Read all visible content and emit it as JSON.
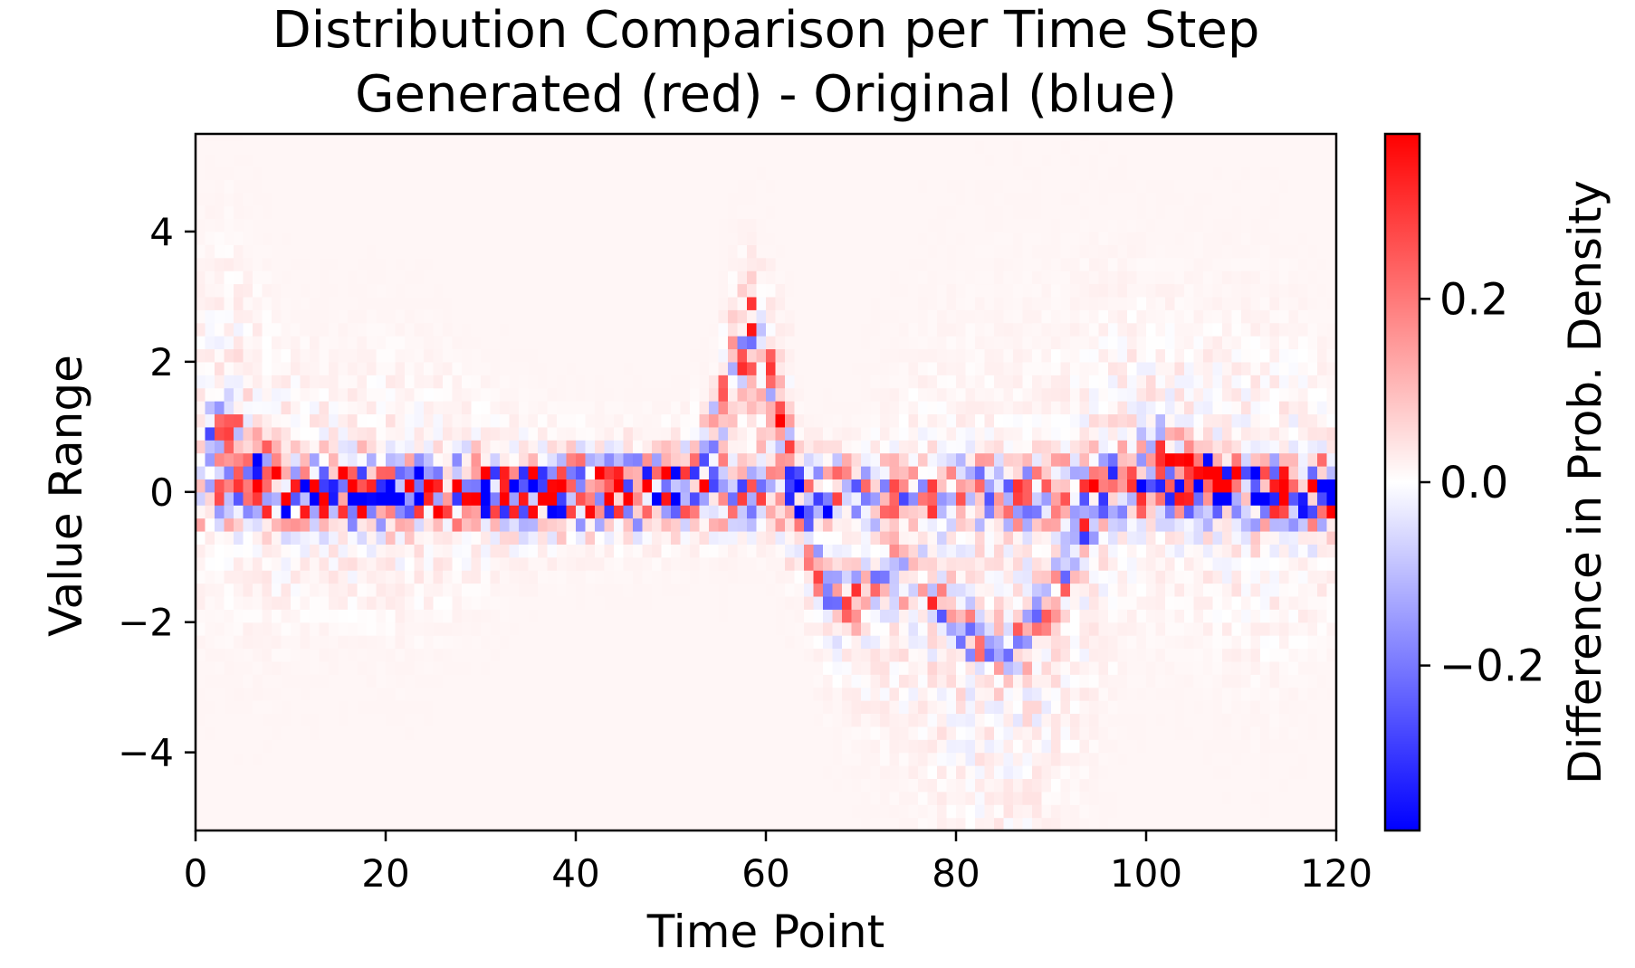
{
  "chart_data": {
    "type": "heatmap",
    "title": "Distribution Comparison per Time Step",
    "subtitle": "Generated (red) - Original (blue)",
    "xlabel": "Time Point",
    "ylabel": "Value Range",
    "xlim": [
      0,
      120
    ],
    "ylim": [
      -5.2,
      5.5
    ],
    "x_ticks": [
      0,
      20,
      40,
      60,
      80,
      100,
      120
    ],
    "x_tick_labels": [
      "0",
      "20",
      "40",
      "60",
      "80",
      "100",
      "120"
    ],
    "y_ticks": [
      -4,
      -2,
      0,
      2,
      4
    ],
    "y_tick_labels": [
      "−4",
      "−2",
      "0",
      "2",
      "4"
    ],
    "colorbar": {
      "label": "Difference in Prob. Density",
      "range": [
        -0.38,
        0.38
      ],
      "ticks": [
        -0.2,
        0.0,
        0.2
      ],
      "tick_labels": [
        "−0.2",
        "0.0",
        "0.2"
      ],
      "colormap": "bwr",
      "color_low": "#0000ff",
      "color_mid": "#ffffff",
      "color_high": "#ff0000"
    },
    "grid": false,
    "legend": "none",
    "cell_width": 1,
    "cell_height": 0.2,
    "highlights": [
      {
        "x": 2,
        "y": 0.1,
        "value": 0.25
      },
      {
        "x": 4,
        "y": -0.1,
        "value": -0.25
      },
      {
        "x": 25,
        "y": 0.1,
        "value": 0.33
      },
      {
        "x": 34,
        "y": 0.1,
        "value": -0.25
      },
      {
        "x": 58,
        "y": 2.9,
        "value": 0.3
      },
      {
        "x": 60,
        "y": 1.9,
        "value": 0.3
      },
      {
        "x": 57,
        "y": 0.1,
        "value": -0.28
      },
      {
        "x": 66,
        "y": -0.3,
        "value": -0.38
      },
      {
        "x": 77,
        "y": -0.3,
        "value": 0.3
      },
      {
        "x": 93,
        "y": -0.5,
        "value": 0.33
      },
      {
        "x": 95,
        "y": -0.1,
        "value": -0.3
      },
      {
        "x": 112,
        "y": -0.3,
        "value": -0.2
      }
    ]
  }
}
